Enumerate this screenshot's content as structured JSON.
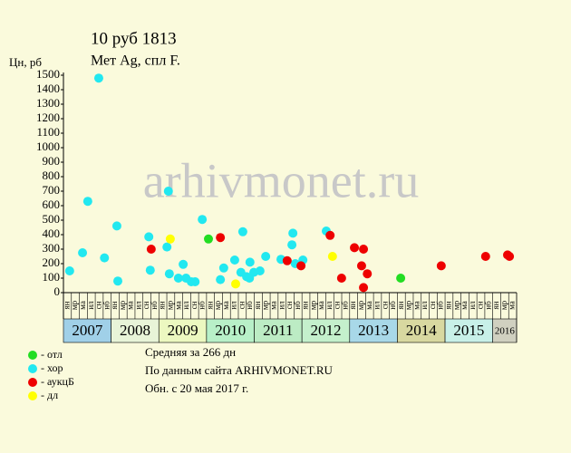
{
  "chart_data": {
    "type": "scatter",
    "title": "10 руб 1813",
    "subtitle": "Мет Ag, спл F.",
    "y_label": "Цн, рб",
    "watermark": "arhivmonet.ru",
    "xlim": [
      2007,
      2016.5
    ],
    "xticks": [
      2007,
      2008,
      2009,
      2010,
      2011,
      2012,
      2013,
      2014,
      2015,
      2016
    ],
    "year_colors": [
      "#a0d0e8",
      "#e8f4d8",
      "#ecf8c0",
      "#b8f0c8",
      "#bcecc4",
      "#c4f0cc",
      "#a8d8e8",
      "#d8d8a0",
      "#c8f0e8",
      "#d0d0c0"
    ],
    "period_labels": [
      "ян",
      "мр",
      "ма",
      "ил",
      "сн",
      "нб",
      "ян",
      "мр",
      "ма",
      "ил",
      "сн",
      "нб",
      "ян",
      "мр",
      "ма",
      "ил",
      "сн",
      "нб",
      "ян",
      "мр",
      "ма",
      "ил",
      "сн",
      "нб",
      "ян",
      "мр",
      "ма",
      "ил",
      "сн",
      "нб",
      "ян",
      "мр",
      "ма",
      "ил",
      "сн",
      "нб",
      "ян",
      "мр",
      "ма",
      "ил",
      "сн",
      "нб",
      "ян",
      "мр",
      "ма",
      "ил",
      "сн",
      "нб",
      "ян",
      "мр",
      "ма",
      "ил",
      "сн",
      "нб",
      "ян",
      "мр",
      "ма"
    ],
    "ylim": [
      0,
      1500
    ],
    "yticks": [
      0,
      100,
      200,
      300,
      400,
      500,
      600,
      700,
      800,
      900,
      1000,
      1100,
      1200,
      1300,
      1400,
      1500
    ],
    "series": [
      {
        "name": "- отл",
        "color": "#22dd22",
        "x": [
          2010.04,
          2014.07
        ],
        "values": [
          370,
          100
        ]
      },
      {
        "name": "- хор",
        "color": "#22e8f0",
        "x": [
          2007.13,
          2007.4,
          2007.51,
          2007.74,
          2007.86,
          2008.12,
          2008.14,
          2008.79,
          2008.82,
          2009.17,
          2009.2,
          2009.22,
          2009.41,
          2009.51,
          2009.57,
          2009.68,
          2009.76,
          2009.91,
          2010.29,
          2010.36,
          2010.59,
          2010.72,
          2010.76,
          2010.84,
          2010.9,
          2010.91,
          2010.99,
          2011.12,
          2011.24,
          2011.56,
          2011.79,
          2011.81,
          2011.86,
          2012.02,
          2012.51
        ],
        "values": [
          150,
          275,
          630,
          1480,
          240,
          460,
          80,
          385,
          155,
          315,
          700,
          130,
          100,
          195,
          100,
          75,
          75,
          505,
          90,
          170,
          225,
          140,
          420,
          110,
          100,
          210,
          140,
          150,
          250,
          230,
          330,
          410,
          200,
          225,
          425
        ]
      },
      {
        "name": "- аукцБ",
        "color": "#ee0000",
        "x": [
          2008.84,
          2010.29,
          2011.69,
          2011.98,
          2012.59,
          2012.83,
          2013.1,
          2013.25,
          2013.29,
          2013.29,
          2013.37,
          2014.92,
          2015.85,
          2016.31,
          2016.35
        ],
        "values": [
          300,
          380,
          220,
          185,
          395,
          100,
          310,
          185,
          300,
          35,
          130,
          185,
          250,
          260,
          250
        ]
      },
      {
        "name": "- дл",
        "color": "#ffff00",
        "x": [
          2009.24,
          2010.61,
          2012.64
        ],
        "values": [
          370,
          60,
          250
        ]
      }
    ],
    "notes": [
      "Средняя за 266 дн",
      "По данным сайта ARHIVMONET.RU",
      "Обн. с 20 мая 2017 г."
    ]
  }
}
